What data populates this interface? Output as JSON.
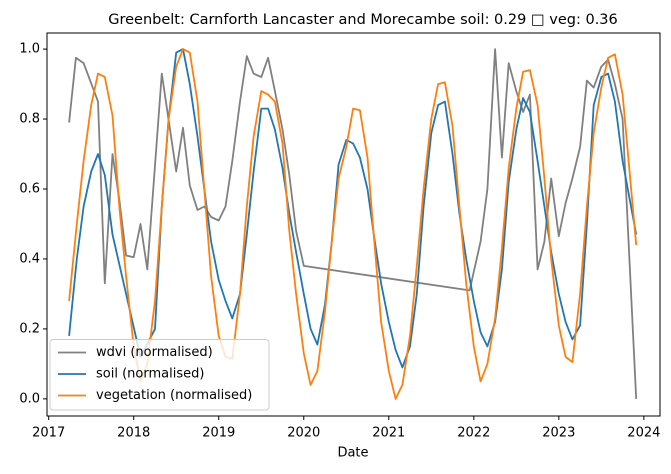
{
  "chart_data": {
    "type": "line",
    "title": "Greenbelt: Carnforth Lancaster and Morecambe soil: 0.29 □ veg: 0.36",
    "x_label": "Date",
    "xlim": [
      2016.98,
      2024.19
    ],
    "xticks": [
      2017,
      2018,
      2019,
      2020,
      2021,
      2022,
      2023,
      2024
    ],
    "ylim": [
      -0.049,
      1.046
    ],
    "yticks": [
      {
        "value": 0,
        "label": "0.0"
      },
      0.2,
      0.4,
      0.6,
      0.8,
      {
        "value": 1,
        "label": "1.0"
      }
    ],
    "legend": "lower left",
    "series": [
      {
        "name": "wdvi (normalised)",
        "color": "#808080",
        "x": [
          2017.24,
          2017.32,
          2017.41,
          2017.58,
          2017.66,
          2017.75,
          2017.83,
          2017.91,
          2018.0,
          2018.08,
          2018.16,
          2018.33,
          2018.5,
          2018.58,
          2018.66,
          2018.75,
          2018.83,
          2018.91,
          2019.0,
          2019.08,
          2019.16,
          2019.25,
          2019.33,
          2019.41,
          2019.5,
          2019.58,
          2019.66,
          2019.75,
          2019.83,
          2019.91,
          2020.0,
          2021.95,
          2022.08,
          2022.16,
          2022.25,
          2022.33,
          2022.41,
          2022.5,
          2022.58,
          2022.66,
          2022.75,
          2022.83,
          2022.91,
          2023.0,
          2023.08,
          2023.16,
          2023.25,
          2023.33,
          2023.41,
          2023.5,
          2023.58,
          2023.66,
          2023.75,
          2023.91
        ],
        "values": [
          0.79,
          0.975,
          0.96,
          0.85,
          0.33,
          0.7,
          0.57,
          0.41,
          0.405,
          0.5,
          0.37,
          0.93,
          0.65,
          0.775,
          0.61,
          0.54,
          0.55,
          0.52,
          0.51,
          0.55,
          0.68,
          0.85,
          0.98,
          0.93,
          0.92,
          0.975,
          0.88,
          0.77,
          0.64,
          0.48,
          0.38,
          0.31,
          0.45,
          0.6,
          1.0,
          0.69,
          0.96,
          0.88,
          0.82,
          0.87,
          0.37,
          0.45,
          0.63,
          0.465,
          0.56,
          0.63,
          0.72,
          0.91,
          0.89,
          0.95,
          0.97,
          0.9,
          0.8,
          0.0
        ]
      },
      {
        "name": "soil (normalised)",
        "color": "#1f77b4",
        "x": [
          2017.24,
          2017.33,
          2017.41,
          2017.5,
          2017.58,
          2017.66,
          2017.75,
          2017.91,
          2018.08,
          2018.25,
          2018.33,
          2018.41,
          2018.5,
          2018.58,
          2018.66,
          2018.75,
          2018.83,
          2018.91,
          2019.0,
          2019.08,
          2019.16,
          2019.25,
          2019.33,
          2019.41,
          2019.5,
          2019.58,
          2019.66,
          2019.75,
          2019.83,
          2019.91,
          2020.0,
          2020.08,
          2020.16,
          2020.25,
          2020.33,
          2020.41,
          2020.5,
          2020.58,
          2020.66,
          2020.75,
          2020.83,
          2020.91,
          2021.0,
          2021.08,
          2021.16,
          2021.25,
          2021.33,
          2021.41,
          2021.5,
          2021.58,
          2021.66,
          2021.75,
          2021.83,
          2021.91,
          2022.0,
          2022.08,
          2022.16,
          2022.25,
          2022.33,
          2022.41,
          2022.5,
          2022.58,
          2022.66,
          2022.75,
          2022.83,
          2022.91,
          2023.0,
          2023.08,
          2023.16,
          2023.25,
          2023.33,
          2023.41,
          2023.5,
          2023.58,
          2023.66,
          2023.75,
          2023.91
        ],
        "values": [
          0.18,
          0.4,
          0.55,
          0.65,
          0.7,
          0.64,
          0.47,
          0.3,
          0.12,
          0.2,
          0.55,
          0.8,
          0.99,
          1.0,
          0.9,
          0.75,
          0.6,
          0.45,
          0.34,
          0.28,
          0.23,
          0.3,
          0.47,
          0.65,
          0.83,
          0.83,
          0.77,
          0.66,
          0.53,
          0.42,
          0.3,
          0.2,
          0.155,
          0.27,
          0.45,
          0.67,
          0.74,
          0.73,
          0.69,
          0.6,
          0.46,
          0.33,
          0.22,
          0.14,
          0.09,
          0.15,
          0.3,
          0.55,
          0.76,
          0.84,
          0.85,
          0.7,
          0.53,
          0.4,
          0.28,
          0.19,
          0.15,
          0.22,
          0.37,
          0.62,
          0.77,
          0.86,
          0.82,
          0.68,
          0.55,
          0.42,
          0.3,
          0.22,
          0.17,
          0.21,
          0.5,
          0.84,
          0.92,
          0.93,
          0.85,
          0.68,
          0.47
        ]
      },
      {
        "name": "vegetation (normalised)",
        "color": "#ff7f0e",
        "x": [
          2017.24,
          2017.33,
          2017.41,
          2017.5,
          2017.58,
          2017.66,
          2017.75,
          2017.83,
          2017.91,
          2018.0,
          2018.08,
          2018.16,
          2018.25,
          2018.33,
          2018.41,
          2018.5,
          2018.58,
          2018.66,
          2018.75,
          2018.83,
          2018.91,
          2019.0,
          2019.08,
          2019.16,
          2019.25,
          2019.33,
          2019.41,
          2019.5,
          2019.58,
          2019.66,
          2019.75,
          2019.83,
          2019.91,
          2020.0,
          2020.08,
          2020.16,
          2020.25,
          2020.33,
          2020.41,
          2020.5,
          2020.58,
          2020.66,
          2020.75,
          2020.83,
          2020.91,
          2021.0,
          2021.08,
          2021.16,
          2021.25,
          2021.33,
          2021.41,
          2021.5,
          2021.58,
          2021.66,
          2021.75,
          2021.83,
          2021.91,
          2022.0,
          2022.08,
          2022.16,
          2022.25,
          2022.33,
          2022.41,
          2022.5,
          2022.58,
          2022.66,
          2022.75,
          2022.83,
          2022.91,
          2023.0,
          2023.08,
          2023.16,
          2023.25,
          2023.33,
          2023.41,
          2023.5,
          2023.58,
          2023.66,
          2023.75,
          2023.91
        ],
        "values": [
          0.28,
          0.5,
          0.68,
          0.84,
          0.93,
          0.92,
          0.81,
          0.55,
          0.35,
          0.15,
          0.05,
          0.1,
          0.28,
          0.55,
          0.8,
          0.95,
          1.0,
          0.99,
          0.85,
          0.6,
          0.35,
          0.18,
          0.12,
          0.115,
          0.3,
          0.55,
          0.75,
          0.88,
          0.87,
          0.85,
          0.73,
          0.48,
          0.3,
          0.13,
          0.04,
          0.08,
          0.25,
          0.45,
          0.63,
          0.72,
          0.83,
          0.825,
          0.69,
          0.45,
          0.22,
          0.08,
          0.0,
          0.04,
          0.18,
          0.38,
          0.6,
          0.8,
          0.9,
          0.905,
          0.78,
          0.55,
          0.33,
          0.15,
          0.05,
          0.1,
          0.23,
          0.43,
          0.66,
          0.83,
          0.935,
          0.94,
          0.84,
          0.63,
          0.4,
          0.21,
          0.12,
          0.105,
          0.3,
          0.55,
          0.76,
          0.89,
          0.975,
          0.985,
          0.87,
          0.44
        ]
      }
    ]
  }
}
